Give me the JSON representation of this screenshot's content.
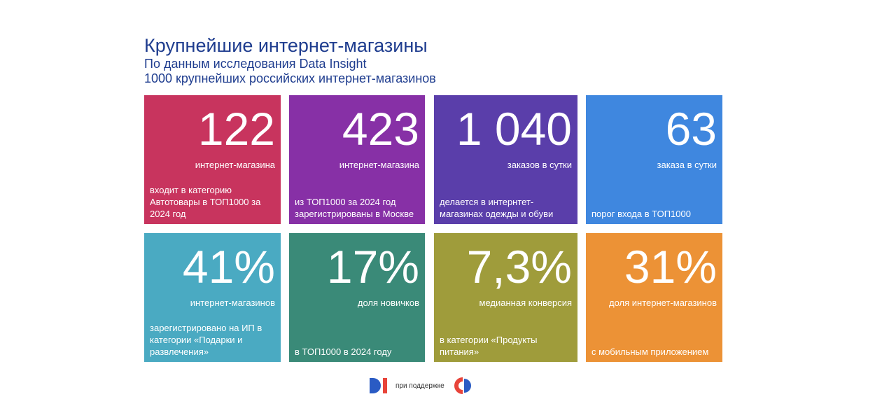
{
  "header": {
    "title": "Крупнейшие интернет-магазины",
    "subtitle1": "По данным исследования Data Insight",
    "subtitle2": "1000 крупнейших российских интернет-магазинов"
  },
  "tiles": [
    {
      "value": "122",
      "unit": "интернет-магазина",
      "desc": "входит в категорию Автотовары в ТОП1000 за 2024 год",
      "color": "#C8345E"
    },
    {
      "value": "423",
      "unit": "интернет-магазина",
      "desc": "из ТОП1000 за 2024 год зарегистрированы в Москве",
      "color": "#8730A6"
    },
    {
      "value": "1 040",
      "unit": "заказов в сутки",
      "desc": "делается в интернтет-магазинах одежды и обуви",
      "color": "#5A3EAA"
    },
    {
      "value": "63",
      "unit": "заказа в сутки",
      "desc": "порог входа в ТОП1000",
      "color": "#3F87DF"
    },
    {
      "value": "41%",
      "unit": "интернет-магазинов",
      "desc": "зарегистрировано на ИП в категории «Подарки и развлечения»",
      "color": "#4AAAC2"
    },
    {
      "value": "17%",
      "unit": "доля новичков",
      "desc": "в ТОП1000 в 2024 году",
      "color": "#3A8A78"
    },
    {
      "value": "7,3%",
      "unit": "медианная конверсия",
      "desc": "в категории «Продукты питания»",
      "color": "#9F9C3B"
    },
    {
      "value": "31%",
      "unit": "доля интернет-магазинов",
      "desc": "с мобильным приложением",
      "color": "#EC9236"
    }
  ],
  "footer": {
    "support_text": "при поддержке",
    "logo_left": "DI"
  }
}
